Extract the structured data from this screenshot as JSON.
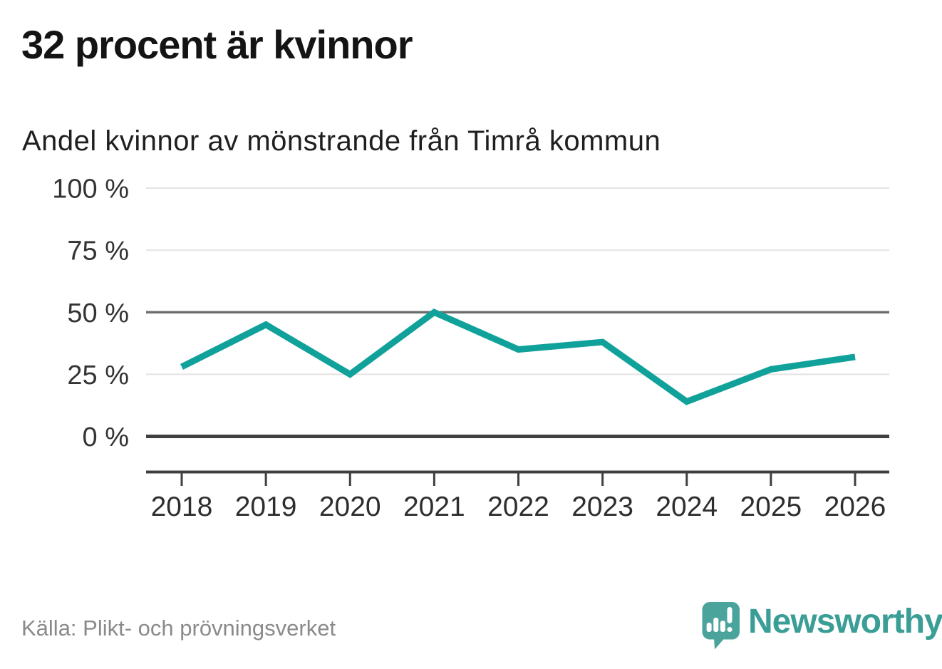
{
  "header": {
    "title": "32 procent är kvinnor",
    "subtitle": "Andel kvinnor av mönstrande från Timrå kommun"
  },
  "chart_data": {
    "type": "line",
    "title": "32 procent är kvinnor",
    "subtitle": "Andel kvinnor av mönstrande från Timrå kommun",
    "x": [
      "2018",
      "2019",
      "2020",
      "2021",
      "2022",
      "2023",
      "2024",
      "2025",
      "2026"
    ],
    "series": [
      {
        "name": "Andel kvinnor av mönstrande (%)",
        "values": [
          28,
          45,
          25,
          50,
          35,
          38,
          14,
          27,
          32
        ],
        "color": "#10a29a"
      }
    ],
    "xlabel": "",
    "ylabel": "",
    "ylim": [
      0,
      100
    ],
    "yticks": [
      0,
      25,
      50,
      75,
      100
    ],
    "ytick_suffix": " %",
    "grid": true,
    "emphasized_yticks": [
      50
    ],
    "baseline_ytick": 0,
    "legend_position": "none"
  },
  "footer": {
    "source": "Källa: Plikt- och prövningsverket",
    "brand_name": "Newsworthy"
  },
  "icons": {
    "brand_icon": "bar-chart-speech-bubble-icon"
  },
  "colors": {
    "accent": "#10a29a",
    "title_text": "#141414",
    "subtitle_text": "#1f1f1f",
    "axis_label_text": "#343434",
    "muted_text": "#8a8a8a",
    "grid_light": "#e4e4e4",
    "grid_mid": "#6d6d6d",
    "grid_dark": "#3f3f3f",
    "brand_text": "#3a9e96",
    "brand_bubble": "#4ba49c"
  }
}
